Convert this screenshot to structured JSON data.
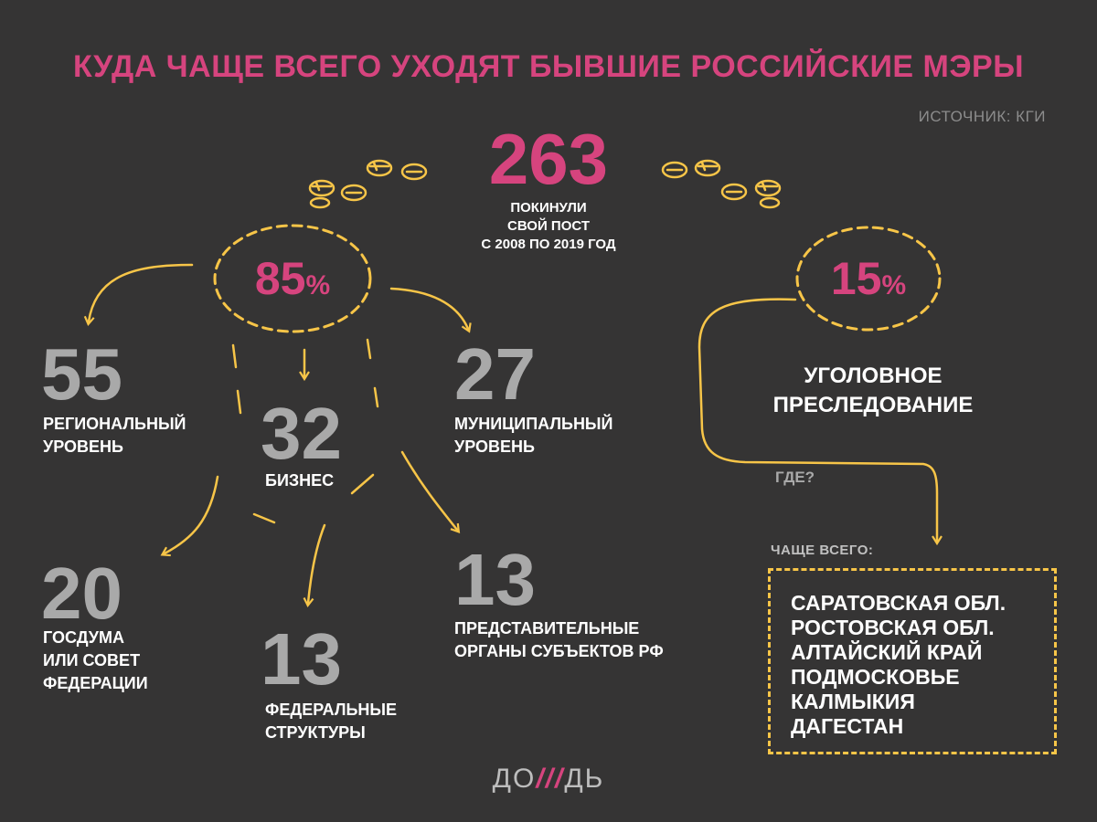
{
  "title": "КУДА ЧАЩЕ ВСЕГО УХОДЯТ БЫВШИЕ РОССИЙСКИЕ МЭРЫ",
  "source": "ИСТОЧНИК: КГИ",
  "total": {
    "value": "263",
    "caption": "ПОКИНУЛИ\nСВОЙ ПОСТ\nС 2008 ПО 2019 ГОД"
  },
  "share_85": {
    "value": "85",
    "unit": "%"
  },
  "share_15": {
    "value": "15",
    "unit": "%"
  },
  "branches": {
    "regional": {
      "value": "55",
      "caption": "РЕГИОНАЛЬНЫЙ\nУРОВЕНЬ"
    },
    "business": {
      "value": "32",
      "caption": "БИЗНЕС"
    },
    "municipal": {
      "value": "27",
      "caption": "МУНИЦИПАЛЬНЫЙ\nУРОВЕНЬ"
    },
    "duma": {
      "value": "20",
      "caption": "ГОСДУМА\nИЛИ СОВЕТ\nФЕДЕРАЦИИ"
    },
    "federal": {
      "value": "13",
      "caption": "ФЕДЕРАЛЬНЫЕ\nСТРУКТУРЫ"
    },
    "representative": {
      "value": "13",
      "caption": "ПРЕДСТАВИТЕЛЬНЫЕ\nОРГАНЫ СУБЪЕКТОВ РФ"
    }
  },
  "criminal": {
    "caption": "УГОЛОВНОЕ\nПРЕСЛЕДОВАНИЕ",
    "where": "ГДЕ?",
    "often_label": "ЧАЩЕ ВСЕГО:",
    "regions": [
      "САРАТОВСКАЯ ОБЛ.",
      "РОСТОВСКАЯ ОБЛ.",
      "АЛТАЙСКИЙ КРАЙ",
      "ПОДМОСКОВЬЕ",
      "КАЛМЫКИЯ",
      "ДАГЕСТАН"
    ]
  },
  "logo": {
    "left": "ДО",
    "mark": "///",
    "right": "ДЬ"
  },
  "colors": {
    "background": "#353434",
    "accent": "#d6447e",
    "arrows": "#f7c548",
    "numbers": "#a9a9a9"
  }
}
